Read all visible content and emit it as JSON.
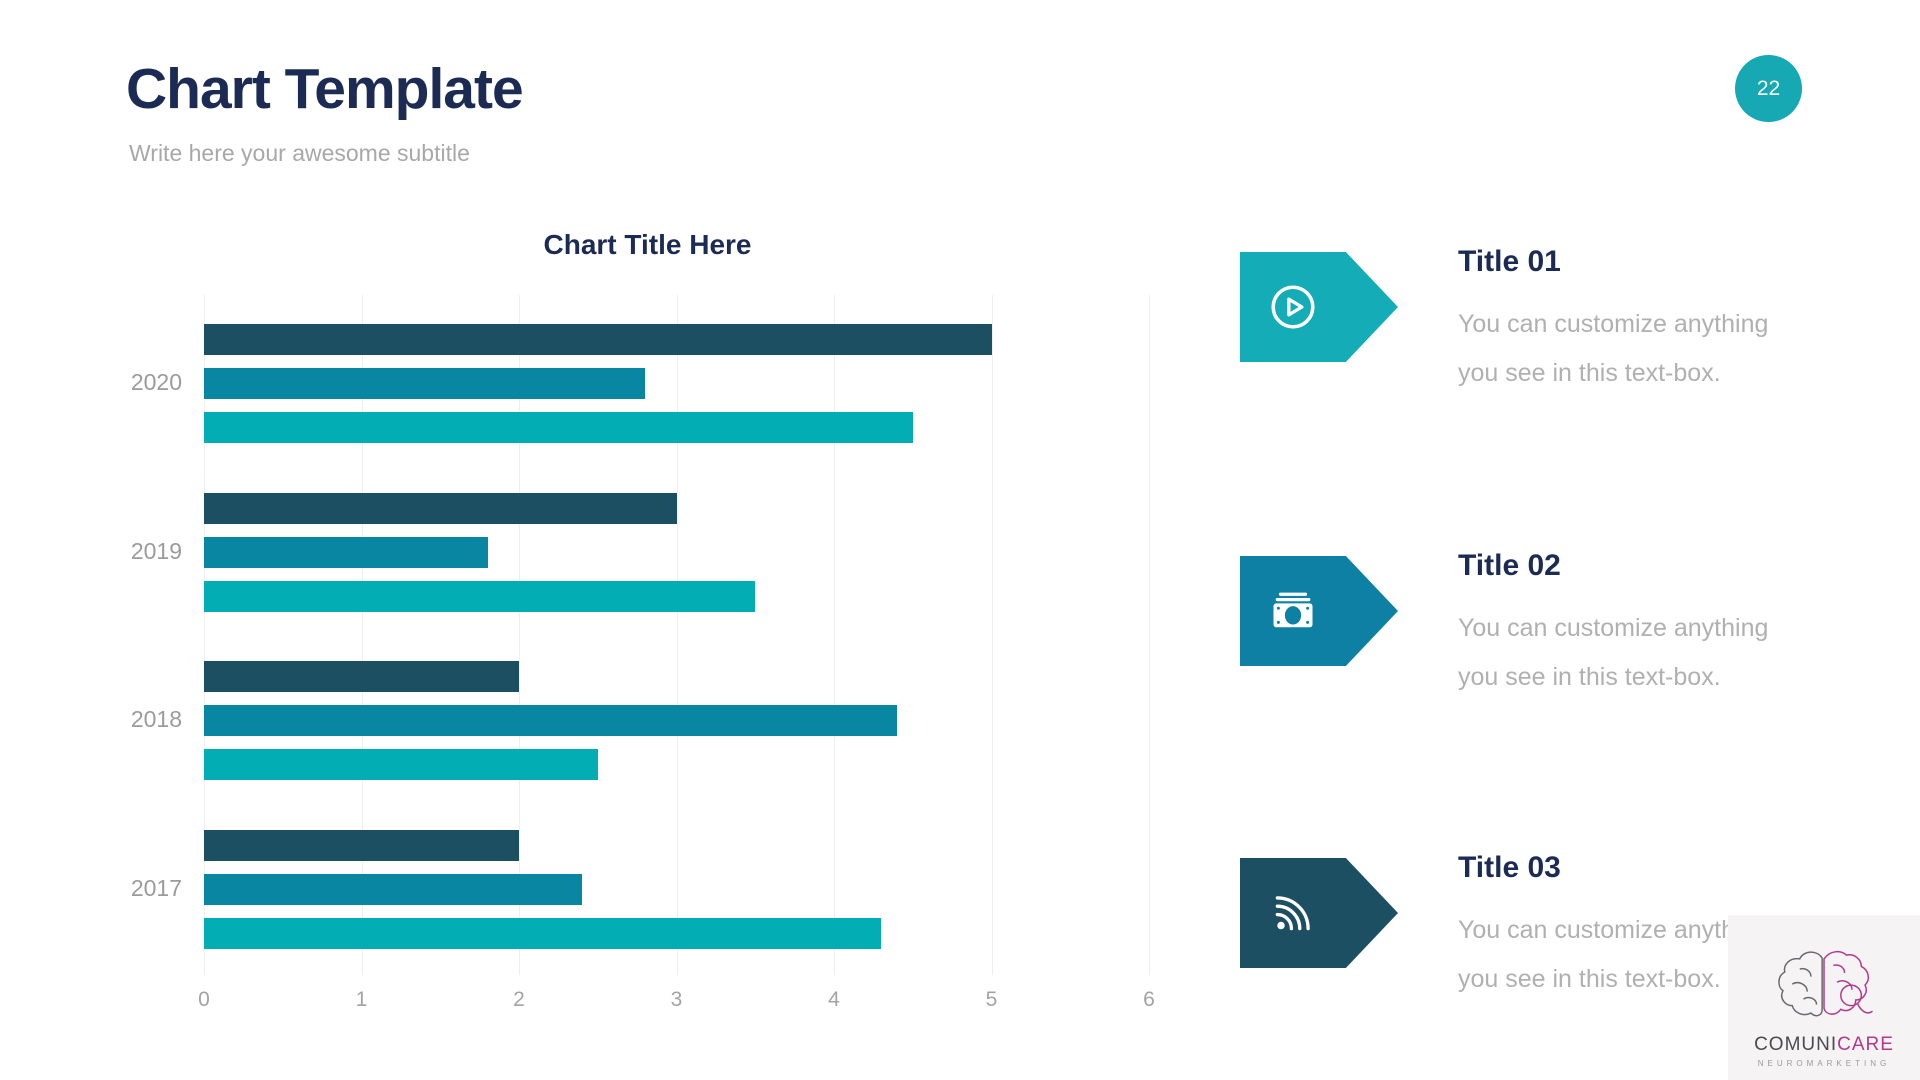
{
  "slide": {
    "title": "Chart Template",
    "subtitle": "Write here your awesome subtitle",
    "page_number": "22"
  },
  "colors": {
    "navy": "#1c2b54",
    "badge_teal": "#16a9b3",
    "bar_dark": "#1d4f63",
    "bar_medium": "#0886a2",
    "bar_bright": "#02aeb4",
    "gridline": "#efefef",
    "magenta": "#b23a8e",
    "logo_panel_bg": "#f5f3f4",
    "gray_text": "#a8a8a8"
  },
  "chart_data": {
    "type": "bar",
    "orientation": "horizontal",
    "title": "Chart Title Here",
    "categories": [
      "2020",
      "2019",
      "2018",
      "2017"
    ],
    "series": [
      {
        "name": "series-dark",
        "color": "#1d4f63",
        "values": [
          5.0,
          3.0,
          2.0,
          2.0
        ]
      },
      {
        "name": "series-medium",
        "color": "#0886a2",
        "values": [
          2.8,
          1.8,
          4.4,
          2.4
        ]
      },
      {
        "name": "series-bright",
        "color": "#02aeb4",
        "values": [
          4.5,
          3.5,
          2.5,
          4.3
        ]
      }
    ],
    "xlim": [
      0,
      6
    ],
    "x_ticks": [
      0,
      1,
      2,
      3,
      4,
      5,
      6
    ],
    "grid": true,
    "legend": false,
    "xlabel": "",
    "ylabel": ""
  },
  "items": [
    {
      "title": "Title 01",
      "body_lines": [
        "You can customize anything",
        "you see in this text-box."
      ],
      "icon": "play-icon",
      "arrow_color": "#14acb6"
    },
    {
      "title": "Title 02",
      "body_lines": [
        "You can customize anything",
        "you see in this text-box."
      ],
      "icon": "money-icon",
      "arrow_color": "#0d80a4"
    },
    {
      "title": "Title 03",
      "body_lines": [
        "You can customize anything",
        "you see in this text-box."
      ],
      "icon": "rss-icon",
      "arrow_color": "#1d4f63"
    }
  ],
  "logo": {
    "brand_part1": "COMUNI",
    "brand_part2": "CARE",
    "tagline": "NEUROMARKETING"
  }
}
